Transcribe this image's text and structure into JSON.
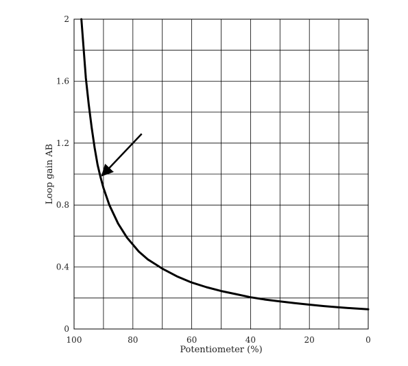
{
  "chart_data": {
    "type": "line",
    "title": "",
    "xlabel": "Potentiometer (%)",
    "ylabel": "Loop gain AB",
    "xlim": [
      100,
      0
    ],
    "ylim": [
      0,
      2
    ],
    "x_ticks": [
      100,
      80,
      60,
      40,
      20,
      0
    ],
    "x_tick_labels": [
      "100",
      "80",
      "60",
      "40",
      "20",
      "0"
    ],
    "y_ticks": [
      0,
      0.4,
      0.8,
      1.2,
      1.6,
      2
    ],
    "y_tick_labels": [
      "0",
      "0.4",
      "0.8",
      "1.2",
      "1.6",
      "2"
    ],
    "x_gridlines": [
      100,
      90,
      80,
      70,
      60,
      50,
      40,
      30,
      20,
      10,
      0
    ],
    "y_gridlines": [
      0,
      0.2,
      0.4,
      0.6,
      0.8,
      1.0,
      1.2,
      1.4,
      1.6,
      1.8,
      2.0
    ],
    "grid": true,
    "legend": "none",
    "series": [
      {
        "color": "#000000",
        "x": [
          97.5,
          96,
          95,
          94,
          93,
          92,
          91,
          90,
          88,
          85,
          82,
          78,
          75,
          70,
          65,
          60,
          55,
          50,
          45,
          40,
          35,
          30,
          25,
          20,
          15,
          10,
          5,
          0
        ],
        "y": [
          2.0,
          1.62,
          1.45,
          1.3,
          1.17,
          1.06,
          0.98,
          0.91,
          0.8,
          0.68,
          0.59,
          0.5,
          0.45,
          0.39,
          0.34,
          0.3,
          0.27,
          0.245,
          0.225,
          0.205,
          0.19,
          0.178,
          0.167,
          0.157,
          0.148,
          0.14,
          0.133,
          0.127
        ]
      }
    ],
    "annotations": [
      {
        "type": "arrow",
        "from": [
          77,
          1.26
        ],
        "to": [
          90.5,
          0.99
        ],
        "color": "#000000"
      }
    ]
  }
}
